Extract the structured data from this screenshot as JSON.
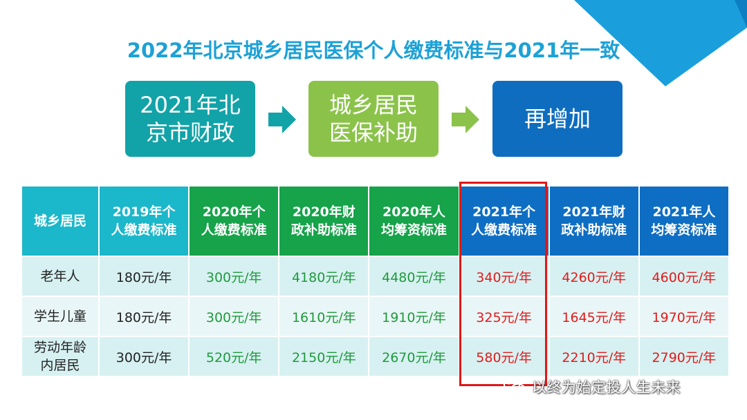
{
  "title": "2022年北京城乡居民医保个人缴费标准与2021年一致",
  "flow": [
    {
      "label": "2021年北\n京市财政",
      "color": "#12a3a8"
    },
    {
      "label": "城乡居民\n医保补助",
      "color": "#8bc34a"
    },
    {
      "label": "再增加",
      "color": "#0f6dbf"
    }
  ],
  "flow_arrows": [
    {
      "icon": "right-arrow-icon",
      "color": "#12a3a8"
    },
    {
      "icon": "right-arrow-icon",
      "color": "#8bc34a"
    }
  ],
  "table": {
    "headers": [
      "城乡居民",
      "2019年个人缴费标准",
      "2020年个人缴费标准",
      "2020年财政补助标准",
      "2020年人均筹资标准",
      "2021年个人缴费标准",
      "2021年财政补助标准",
      "2021年人均筹资标准"
    ],
    "rows": [
      {
        "category": "老年人",
        "values": [
          "180元/年",
          "300元/年",
          "4180元/年",
          "4480元/年",
          "340元/年",
          "4260元/年",
          "4600元/年"
        ]
      },
      {
        "category": "学生儿童",
        "values": [
          "180元/年",
          "300元/年",
          "1610元/年",
          "1910元/年",
          "325元/年",
          "1645元/年",
          "1970元/年"
        ]
      },
      {
        "category": "劳动年龄内居民",
        "values": [
          "300元/年",
          "520元/年",
          "2150元/年",
          "2670元/年",
          "580元/年",
          "2210元/年",
          "2790元/年"
        ]
      }
    ]
  },
  "watermark": {
    "text": "以终为始定投人生未来",
    "icon": "wechat-icon"
  },
  "colors": {
    "title": "#1da1d6",
    "header_cyan": "#1bb7ca",
    "header_green": "#16a34a",
    "header_blue": "#0e6ec3",
    "value_2020": "#1f9a3c",
    "value_2021": "#e21b1b",
    "highlight_frame": "#e01717"
  }
}
